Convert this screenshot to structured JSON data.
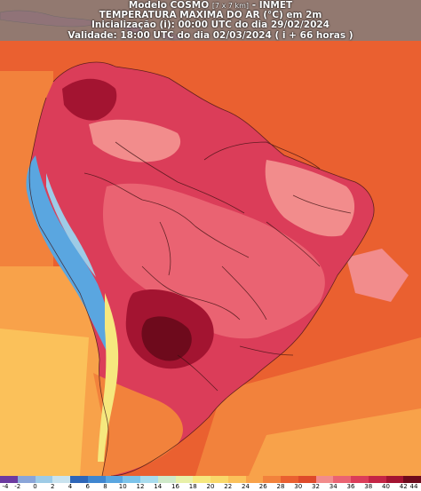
{
  "header": {
    "line1_a": "Modelo COSMO",
    "line1_b": "[7 x 7 km]",
    "line1_c": "- INMET",
    "line2": "TEMPERATURA MAXIMA DO AR (°C) em 2m",
    "line3": "Inicialização (i): 00:00 UTC do dia 29/02/2024",
    "line4": "Validade: 18:00 UTC do dia 02/03/2024 ( i + 66 horas )"
  },
  "legend": {
    "ticks": [
      "-4",
      "-2",
      "0",
      "2",
      "4",
      "6",
      "8",
      "10",
      "12",
      "14",
      "16",
      "18",
      "20",
      "22",
      "24",
      "26",
      "28",
      "30",
      "32",
      "34",
      "36",
      "38",
      "40",
      "42",
      "44"
    ],
    "colors": [
      "#6c3aa0",
      "#8aa5d8",
      "#9ecbe6",
      "#c9e3ef",
      "#2e66b8",
      "#3f86d0",
      "#5aa6e0",
      "#7cc3ea",
      "#a9dcee",
      "#cfe9c9",
      "#e8f0a8",
      "#f6e87e",
      "#f9d86a",
      "#fbc15a",
      "#f8a24a",
      "#f2823c",
      "#ea6030",
      "#de4a2a",
      "#f28c8c",
      "#ea6372",
      "#db3d59",
      "#c42545",
      "#a31431",
      "#6e0a1c"
    ]
  },
  "palette": {
    "ocean_warm": "#f2823c",
    "ocean_hot": "#ea6030",
    "ocean_mid": "#f8a24a",
    "ocean_cool": "#fbc15a",
    "land_hot": "#db3d59",
    "land_veryhot": "#a31431",
    "land_extreme": "#6e0a1c",
    "land_warm": "#ea6372",
    "land_pink": "#f28c8c",
    "andes_cold": "#5aa6e0",
    "andes_cool": "#9ecbe6",
    "header_bg": "#7f7f7f"
  }
}
